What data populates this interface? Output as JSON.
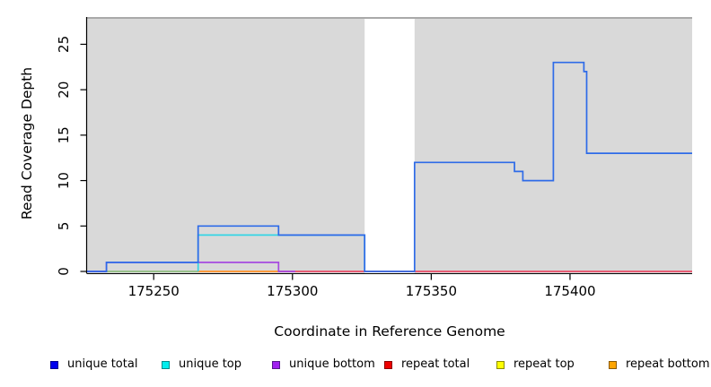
{
  "figure": {
    "background": "#ffffff"
  },
  "chart_data": {
    "type": "line",
    "subtype": "step-coverage",
    "title": "",
    "xlabel": "Coordinate in Reference Genome",
    "ylabel": "Read Coverage Depth",
    "xlim": [
      175226,
      175444
    ],
    "ylim": [
      0,
      28
    ],
    "x_ticks": [
      175250,
      175300,
      175350,
      175400
    ],
    "y_ticks": [
      0,
      5,
      10,
      15,
      20,
      25
    ],
    "grid": "off",
    "plot_background": "#d9d9d9",
    "plot_top_border_color": "#a9a9a9",
    "axis_color": "#000000",
    "gap_region": {
      "x_start": 175326,
      "x_end": 175344,
      "fill": "#ffffff"
    },
    "series": [
      {
        "name": "repeat total",
        "legend_color": "#ee0000",
        "render_color": "#e84a66",
        "points": [
          [
            175226,
            0
          ],
          [
            175444,
            0
          ]
        ]
      },
      {
        "name": "repeat top",
        "legend_color": "#ffff00",
        "render_color": "#8ccc8c",
        "note": "depth 0; overlaps unique top at 0 and renders as pale green blend",
        "points": [
          [
            175233,
            0
          ],
          [
            175266,
            0
          ]
        ]
      },
      {
        "name": "repeat bottom",
        "legend_color": "#ffa500",
        "render_color": "#ffa033",
        "points": [
          [
            175266,
            0
          ],
          [
            175295,
            0
          ]
        ]
      },
      {
        "name": "unique bottom",
        "legend_color": "#a020f0",
        "render_color": "#a64ae0",
        "points": [
          [
            175226,
            0
          ],
          [
            175233,
            0
          ],
          [
            175233,
            1
          ],
          [
            175295,
            1
          ],
          [
            175295,
            0
          ],
          [
            175301,
            0
          ]
        ]
      },
      {
        "name": "unique top",
        "legend_color": "#00eeee",
        "render_color": "#35d5e5",
        "points": [
          [
            175266,
            0
          ],
          [
            175266,
            4
          ],
          [
            175326,
            4
          ],
          [
            175326,
            0
          ]
        ]
      },
      {
        "name": "unique total",
        "legend_color": "#0000ee",
        "render_color": "#2e6be8",
        "points": [
          [
            175226,
            0
          ],
          [
            175233,
            0
          ],
          [
            175233,
            1
          ],
          [
            175266,
            1
          ],
          [
            175266,
            5
          ],
          [
            175295,
            5
          ],
          [
            175295,
            4
          ],
          [
            175326,
            4
          ],
          [
            175326,
            0
          ],
          [
            175344,
            0
          ],
          [
            175344,
            12
          ],
          [
            175380,
            12
          ],
          [
            175380,
            11
          ],
          [
            175383,
            11
          ],
          [
            175383,
            10
          ],
          [
            175394,
            10
          ],
          [
            175394,
            23
          ],
          [
            175405,
            23
          ],
          [
            175405,
            22
          ],
          [
            175406,
            22
          ],
          [
            175406,
            13
          ],
          [
            175444,
            13
          ]
        ]
      }
    ],
    "legend_position": "bottom"
  },
  "legend": {
    "items": [
      {
        "label": "unique total",
        "color": "#0000ee",
        "border": "#000090"
      },
      {
        "label": "unique top",
        "color": "#00eeee",
        "border": "#008b8b"
      },
      {
        "label": "unique bottom",
        "color": "#a020f0",
        "border": "#551a8b"
      },
      {
        "label": "repeat total",
        "color": "#ee0000",
        "border": "#8b0000"
      },
      {
        "label": "repeat top",
        "color": "#ffff00",
        "border": "#8b8b00"
      },
      {
        "label": "repeat bottom",
        "color": "#ffa500",
        "border": "#8b5a00"
      }
    ]
  }
}
